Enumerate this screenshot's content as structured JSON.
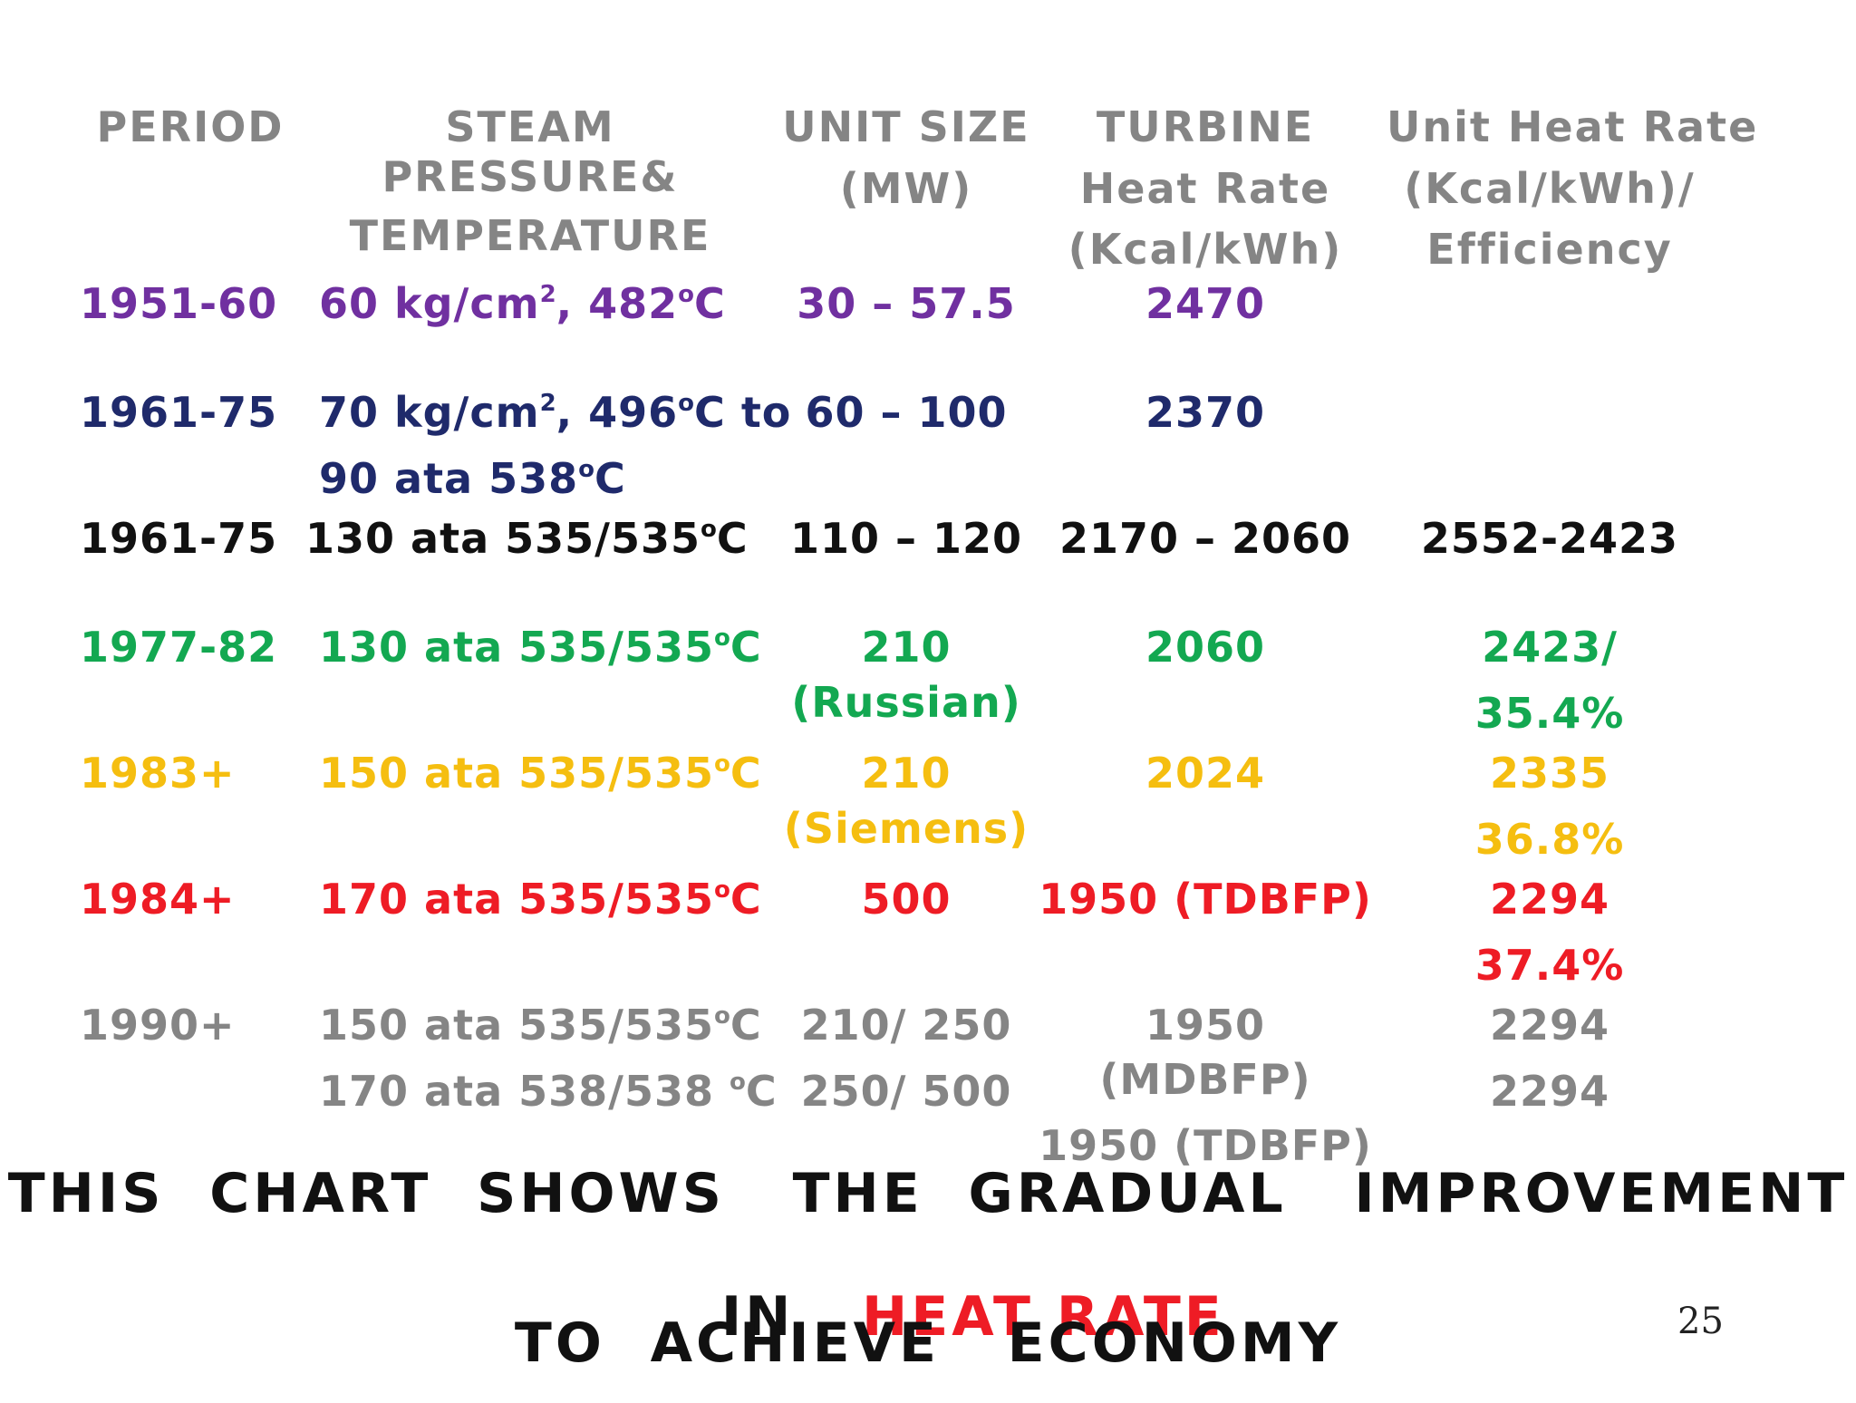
{
  "colors": {
    "header": "#858585",
    "r1951": "#7030A0",
    "r1961a": "#1F2A6B",
    "r1961b": "#111111",
    "r1977": "#13A851",
    "r1983": "#F5BE10",
    "r1984": "#EE1C25",
    "r1990": "#858585",
    "caption": "#111111",
    "highlight": "#EE1C25"
  },
  "headers": {
    "period": "PERIOD",
    "steam_1": "STEAM",
    "steam_2": "PRESSURE&",
    "steam_3": "TEMPERATURE",
    "unit_1": "UNIT SIZE",
    "unit_2": "(MW)",
    "turbine_1": "TURBINE",
    "turbine_2": "Heat Rate",
    "turbine_3": "(Kcal/kWh)",
    "uhr_1": "Unit Heat Rate",
    "uhr_2": "(Kcal/kWh)/",
    "uhr_3": "Efficiency"
  },
  "rows": {
    "r1951": {
      "period": "1951-60",
      "steam": {
        "a": "60 kg/cm",
        "sup1": "2",
        "b": ", 482",
        "sup2": "o",
        "c": "C"
      },
      "unit": "30 – 57.5",
      "turbine": "2470"
    },
    "r1961a": {
      "period": "1961-75",
      "steam": {
        "a": "70 kg/cm",
        "sup1": "2",
        "b": ", 496",
        "sup2": "o",
        "c": "C to"
      },
      "steam2": {
        "a": "90 ata 538",
        "sup": "o",
        "b": "C"
      },
      "unit": "60 – 100",
      "turbine": "2370"
    },
    "r1961b": {
      "period": "1961-75",
      "steam": {
        "a": "130 ata 535/535",
        "sup": "o",
        "b": "C"
      },
      "unit": "110 – 120",
      "turbine": "2170 – 2060",
      "uhr": "2552-2423"
    },
    "r1977": {
      "period": "1977-82",
      "steam": {
        "a": "130 ata 535/535",
        "sup": "o",
        "b": "C"
      },
      "unit_1": "210",
      "unit_2": "(Russian)",
      "turbine": "2060",
      "uhr_1": "2423/",
      "uhr_2": "35.4%"
    },
    "r1983": {
      "period": "1983+",
      "steam": {
        "a": "150 ata 535/535",
        "sup": "o",
        "b": "C"
      },
      "unit_1": "210",
      "unit_2": "(Siemens)",
      "turbine": "2024",
      "uhr_1": "2335",
      "uhr_2": "36.8%"
    },
    "r1984": {
      "period": "1984+",
      "steam": {
        "a": "170 ata 535/535",
        "sup": "o",
        "b": "C"
      },
      "unit": "500",
      "turbine": "1950 (TDBFP)",
      "uhr_1": "2294",
      "uhr_2": "37.4%"
    },
    "r1990": {
      "period": "1990+",
      "steam": {
        "a": "150 ata 535/535",
        "sup": "o",
        "b": "C"
      },
      "steam2": {
        "a": "170 ata 538/538 ",
        "sup": "o",
        "b": "C"
      },
      "unit_1": "210/ 250",
      "unit_2": "250/ 500",
      "turbine_1": "1950",
      "turbine_2": "(MDBFP)",
      "turbine_3": "1950 (TDBFP)",
      "uhr_1": "2294",
      "uhr_2": "2294"
    }
  },
  "caption": {
    "line1": "THIS  CHART  SHOWS   THE  GRADUAL   IMPROVEMENT",
    "line2_prefix": "IN",
    "line2_highlight": "HEAT RATE",
    "line3": "TO  ACHIEVE   ECONOMY"
  },
  "page_number": "25"
}
